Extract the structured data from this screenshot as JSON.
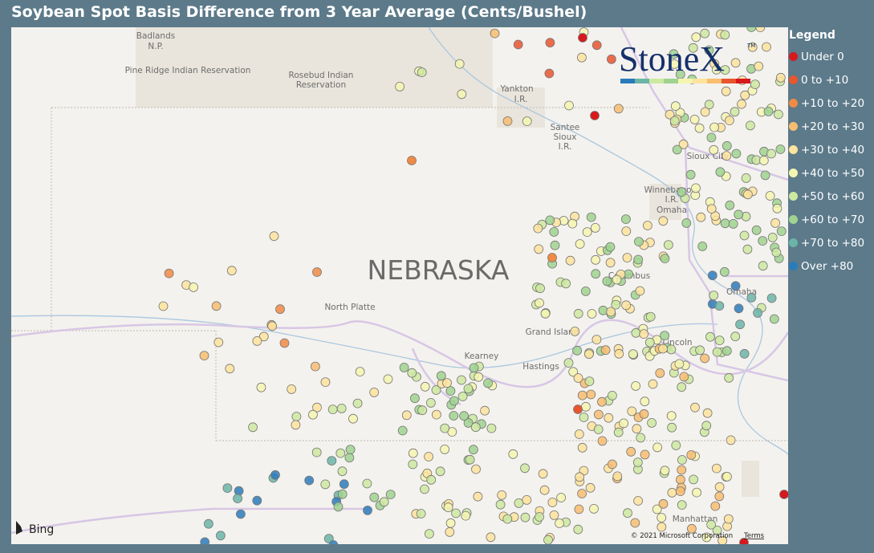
{
  "header": {
    "title": "Soybean Spot Basis Difference from 3 Year Average (Cents/Bushel)"
  },
  "legend": {
    "title": "Legend",
    "items": [
      {
        "label": "Under 0",
        "color": "#d7191c"
      },
      {
        "label": "0 to +10",
        "color": "#e8552e"
      },
      {
        "label": "+10 to +20",
        "color": "#f08a44"
      },
      {
        "label": "+20 to +30",
        "color": "#f7bd70"
      },
      {
        "label": "+30 to +40",
        "color": "#fde39c"
      },
      {
        "label": "+40 to +50",
        "color": "#f4f6b0"
      },
      {
        "label": "+50 to +60",
        "color": "#cde9a0"
      },
      {
        "label": "+60 to +70",
        "color": "#9fd38f"
      },
      {
        "label": "+70 to +80",
        "color": "#6bb5a8"
      },
      {
        "label": "Over +80",
        "color": "#2b7bba"
      }
    ]
  },
  "logo": {
    "name": "StoneX",
    "mark": "TM"
  },
  "map": {
    "state": "NEBRASKA",
    "labels": [
      "Badlands",
      "N.P.",
      "Pine Ridge Indian Reservation",
      "Rosebud Indian",
      "Reservation",
      "Yankton",
      "I.R.",
      "Santee",
      "Sioux",
      "I.R.",
      "Sioux City",
      "Winnebago",
      "I.R.",
      "Omaha",
      "North Platte",
      "Columbus",
      "Grand Island",
      "Kearney",
      "Hastings",
      "Lincoln",
      "Omaha",
      "Manhattan"
    ],
    "provider": "Bing",
    "attribution": "© 2021 Microsoft Corporation",
    "terms": "Terms"
  }
}
